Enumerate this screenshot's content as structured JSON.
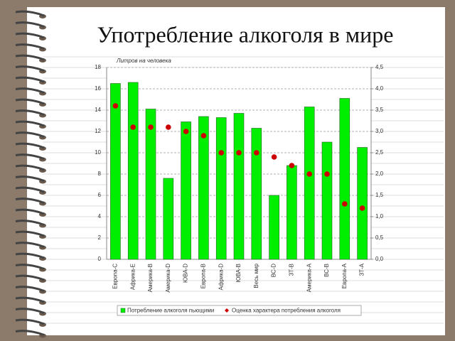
{
  "chart_data": {
    "type": "bar",
    "title": "Употребление алкоголя в мире",
    "y_label": "Литров на человека",
    "categories": [
      "Европа-С",
      "Африка-Е",
      "Америка-В",
      "Америка-D",
      "ЮВА-D",
      "Европа-В",
      "Африка-D",
      "ЮВА-В",
      "Весь мир",
      "ВС-D",
      "ЗТ-В",
      "Америка-А",
      "ВС-В",
      "Европа-А",
      "ЗТ-А"
    ],
    "series": [
      {
        "name": "Потребление алкоголя пьющими",
        "color": "#00ee00",
        "values": [
          16.5,
          16.6,
          14.1,
          7.6,
          12.9,
          13.4,
          13.3,
          13.7,
          12.3,
          6.0,
          8.8,
          14.3,
          11.0,
          15.1,
          10.5
        ]
      },
      {
        "name": "Оценка характера потребления алкоголя",
        "color": "#cc0000",
        "type": "scatter",
        "axis": "y2",
        "values": [
          3.6,
          3.1,
          3.1,
          3.1,
          3.0,
          2.9,
          2.5,
          2.5,
          2.5,
          2.4,
          2.2,
          2.0,
          2.0,
          1.3,
          1.2
        ]
      }
    ],
    "ylim": [
      0,
      18
    ],
    "yticks": [
      0,
      2,
      4,
      6,
      8,
      10,
      12,
      14,
      16,
      18
    ],
    "y2lim": [
      0,
      4.5
    ],
    "y2ticks": [
      {
        "value": 0,
        "label": "0,0"
      },
      {
        "value": 0.5,
        "label": "0,5"
      },
      {
        "value": 1,
        "label": "1,0"
      },
      {
        "value": 1.5,
        "label": "1,5"
      },
      {
        "value": 2,
        "label": "2,0"
      },
      {
        "value": 2.5,
        "label": "2,5"
      },
      {
        "value": 3,
        "label": "3,0"
      },
      {
        "value": 3.5,
        "label": "3,5"
      },
      {
        "value": 4,
        "label": "4,0"
      },
      {
        "value": 4.5,
        "label": "4,5"
      }
    ],
    "grid": true
  }
}
